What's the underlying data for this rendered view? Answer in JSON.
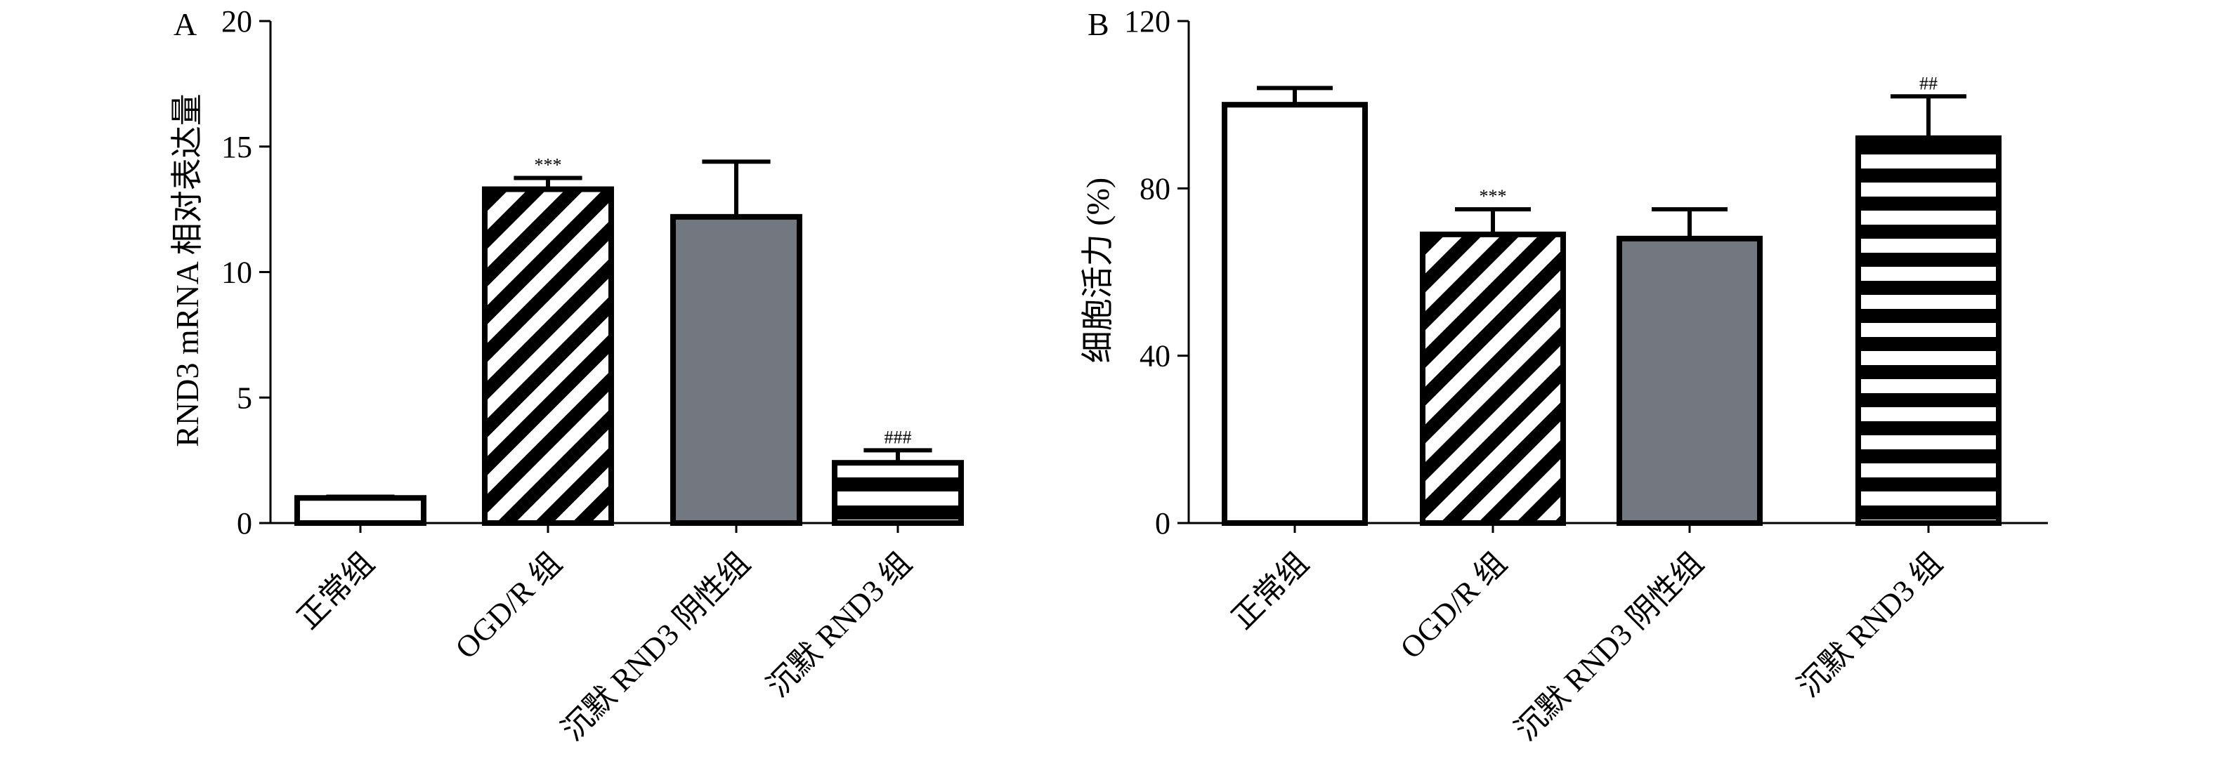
{
  "chart_data": [
    {
      "panel": "A",
      "type": "bar",
      "ylabel": "RND3 mRNA 相对表达量",
      "ylim": [
        0,
        20
      ],
      "yticks": [
        "0",
        "5",
        "10",
        "15",
        "20"
      ],
      "categories": [
        "正常组",
        "OGD/R 组",
        "沉默 RND3 阴性组",
        "沉默 RND3 组"
      ],
      "values": [
        1.0,
        13.3,
        12.2,
        2.4
      ],
      "errors": [
        0.05,
        0.45,
        2.2,
        0.5
      ],
      "annotations": [
        "",
        "***",
        "",
        "###"
      ],
      "fills": [
        "white",
        "diagonal",
        "gray",
        "horizontal"
      ]
    },
    {
      "panel": "B",
      "type": "bar",
      "ylabel": "细胞活力 (%)",
      "ylim": [
        0,
        120
      ],
      "yticks": [
        "0",
        "40",
        "80",
        "120"
      ],
      "categories": [
        "正常组",
        "OGD/R 组",
        "沉默 RND3 阴性组",
        "沉默 RND3 组"
      ],
      "values": [
        100,
        69,
        68,
        92
      ],
      "errors": [
        4,
        6,
        7,
        10
      ],
      "annotations": [
        "",
        "***",
        "",
        "##"
      ],
      "fills": [
        "white",
        "diagonal",
        "gray",
        "horizontal"
      ]
    }
  ],
  "colors": {
    "bar_gray": "#737880",
    "outline": "#000000",
    "background": "#ffffff"
  }
}
